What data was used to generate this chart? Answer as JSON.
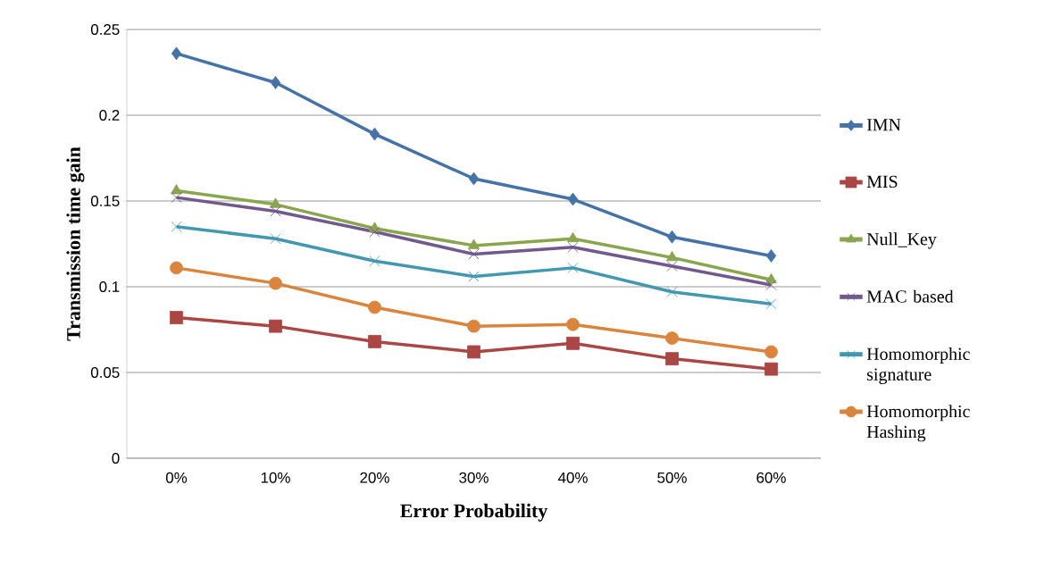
{
  "chart_data": {
    "type": "line",
    "xlabel": "Error Probability",
    "ylabel": "Transmission time gain",
    "categories": [
      "0%",
      "10%",
      "20%",
      "30%",
      "40%",
      "50%",
      "60%"
    ],
    "ylim": [
      0,
      0.25
    ],
    "yticks": [
      0,
      0.05,
      0.1,
      0.15,
      0.2,
      0.25
    ],
    "grid": "y",
    "legend": "right",
    "series": [
      {
        "name": "IMN",
        "color": "#4572a7",
        "marker": "diamond",
        "values": [
          0.236,
          0.219,
          0.189,
          0.163,
          0.151,
          0.129,
          0.118
        ]
      },
      {
        "name": "MIS",
        "color": "#aa4643",
        "marker": "square",
        "values": [
          0.082,
          0.077,
          0.068,
          0.062,
          0.067,
          0.058,
          0.052
        ]
      },
      {
        "name": "Null_Key",
        "color": "#89a54e",
        "marker": "triangle",
        "values": [
          0.156,
          0.148,
          0.134,
          0.124,
          0.128,
          0.117,
          0.104
        ]
      },
      {
        "name": "MAC based",
        "color": "#71588f",
        "marker": "cross",
        "values": [
          0.152,
          0.144,
          0.132,
          0.119,
          0.123,
          0.112,
          0.101
        ]
      },
      {
        "name": "Homomorphic signature",
        "color": "#4198af",
        "marker": "cross",
        "values": [
          0.135,
          0.128,
          0.115,
          0.106,
          0.111,
          0.097,
          0.09
        ]
      },
      {
        "name": "Homomorphic Hashing",
        "color": "#db843d",
        "marker": "circle",
        "values": [
          0.111,
          0.102,
          0.088,
          0.077,
          0.078,
          0.07,
          0.062
        ]
      }
    ]
  }
}
